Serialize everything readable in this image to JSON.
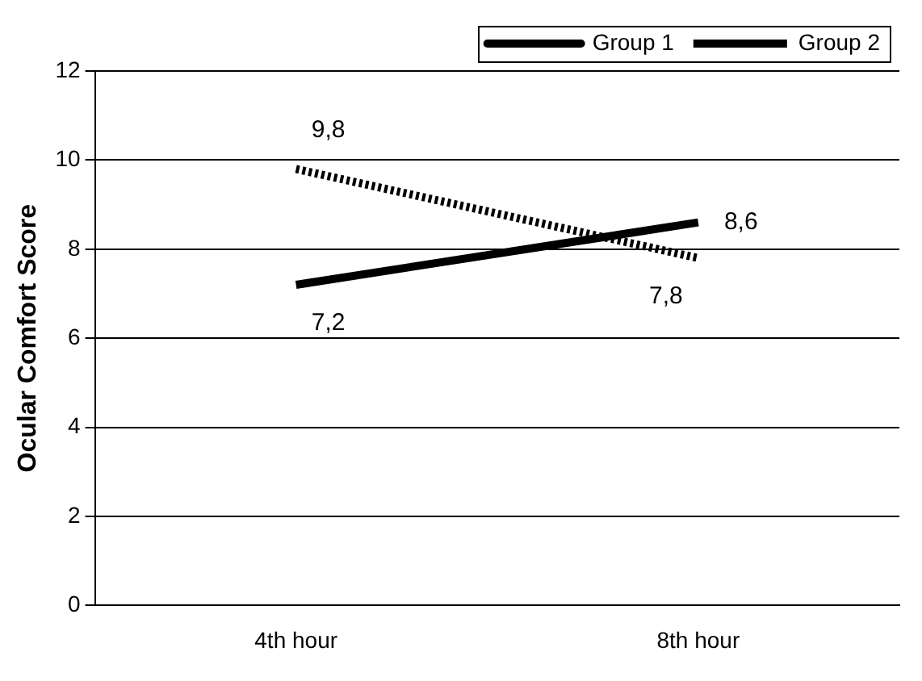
{
  "chart_data": {
    "type": "line",
    "ylabel": "Ocular Comfort Score",
    "categories": [
      "4th hour",
      "8th hour"
    ],
    "series": [
      {
        "name": "Group 1",
        "color": "#000000",
        "values": [
          7.2,
          8.6
        ],
        "line_style": "solid",
        "value_labels": [
          "7,2",
          "8,6"
        ]
      },
      {
        "name": "Group 2",
        "color": "#000000",
        "values": [
          9.8,
          7.8
        ],
        "line_style": "dotted",
        "value_labels": [
          "9,8",
          "7,8"
        ]
      }
    ],
    "ylim": [
      0,
      12
    ],
    "yticks": [
      0,
      2,
      4,
      6,
      8,
      10,
      12
    ],
    "grid": "y",
    "legend": "top right",
    "marker": "none"
  }
}
